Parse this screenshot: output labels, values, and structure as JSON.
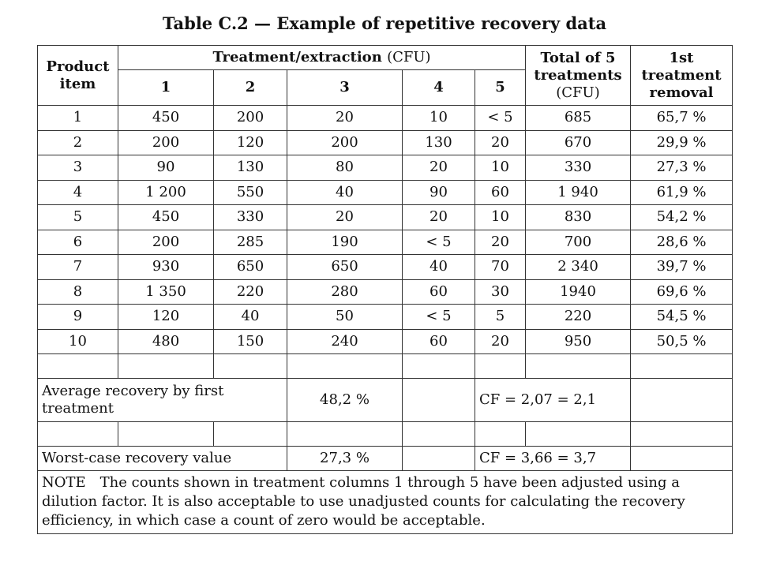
{
  "title": "Table C.2 — Example of repetitive recovery data",
  "header": {
    "product_line1": "Product",
    "product_line2": "item",
    "treatment_group": "Treatment/extraction",
    "treatment_unit": "(CFU)",
    "cols": [
      "1",
      "2",
      "3",
      "4",
      "5"
    ],
    "total_line1": "Total of 5",
    "total_line2": "treatments",
    "total_unit": "(CFU)",
    "removal_line1": "1st",
    "removal_line2": "treatment",
    "removal_line3": "removal"
  },
  "rows": [
    [
      "1",
      "450",
      "200",
      "20",
      "10",
      "< 5",
      "685",
      "65,7 %"
    ],
    [
      "2",
      "200",
      "120",
      "200",
      "130",
      "20",
      "670",
      "29,9 %"
    ],
    [
      "3",
      "90",
      "130",
      "80",
      "20",
      "10",
      "330",
      "27,3 %"
    ],
    [
      "4",
      "1 200",
      "550",
      "40",
      "90",
      "60",
      "1 940",
      "61,9 %"
    ],
    [
      "5",
      "450",
      "330",
      "20",
      "20",
      "10",
      "830",
      "54,2 %"
    ],
    [
      "6",
      "200",
      "285",
      "190",
      "< 5",
      "20",
      "700",
      "28,6 %"
    ],
    [
      "7",
      "930",
      "650",
      "650",
      "40",
      "70",
      "2 340",
      "39,7 %"
    ],
    [
      "8",
      "1 350",
      "220",
      "280",
      "60",
      "30",
      "1940",
      "69,6 %"
    ],
    [
      "9",
      "120",
      "40",
      "50",
      "< 5",
      "5",
      "220",
      "54,5 %"
    ],
    [
      "10",
      "480",
      "150",
      "240",
      "60",
      "20",
      "950",
      "50,5 %"
    ]
  ],
  "summary": {
    "average_label": "Average recovery by first treatment",
    "average_value": "48,2 %",
    "average_cf": "CF = 2,07 = 2,1",
    "worst_label": "Worst-case recovery value",
    "worst_value": "27,3 %",
    "worst_cf": "CF = 3,66 = 3,7"
  },
  "note": {
    "label": "NOTE",
    "text": "The counts shown in treatment columns 1 through 5 have been adjusted using a dilution factor. It is also acceptable to use unadjusted counts for calculating the recovery efficiency, in which case a count of zero would be acceptable."
  }
}
